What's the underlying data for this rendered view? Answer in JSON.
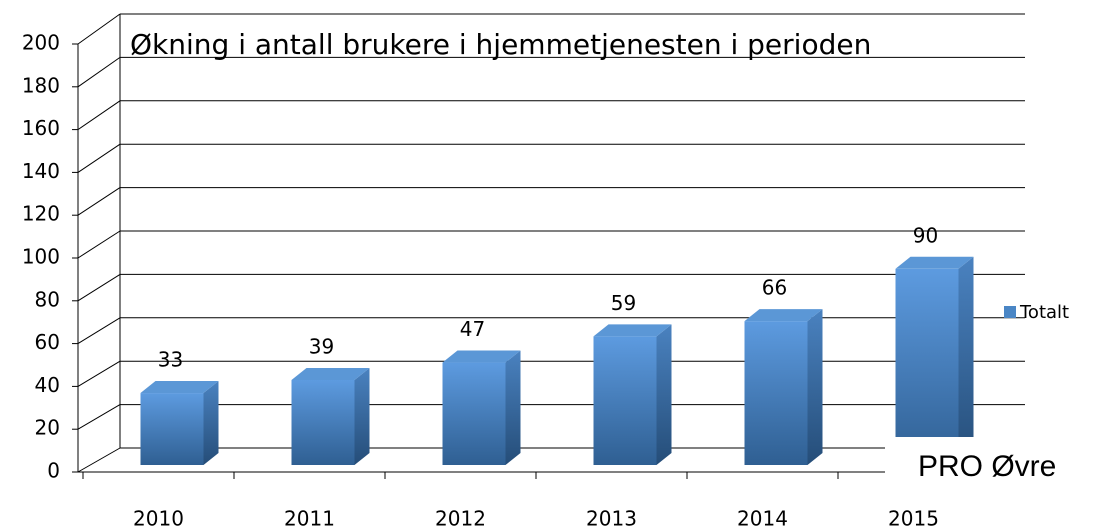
{
  "chart_data": {
    "type": "bar3d",
    "title": "Økning i antall brukere i hjemmetjenesten i perioden",
    "categories": [
      "2010",
      "2011",
      "2012",
      "2013",
      "2014",
      "2015"
    ],
    "series": [
      {
        "name": "Totalt",
        "color": "#4a86c5",
        "values": [
          33,
          39,
          47,
          59,
          66,
          90
        ]
      }
    ],
    "ylim": [
      0,
      200
    ],
    "yticks": [
      0,
      20,
      40,
      60,
      80,
      100,
      120,
      140,
      160,
      180,
      200
    ],
    "grid": true,
    "legend": "right",
    "annotation": "PRO Øvre"
  }
}
